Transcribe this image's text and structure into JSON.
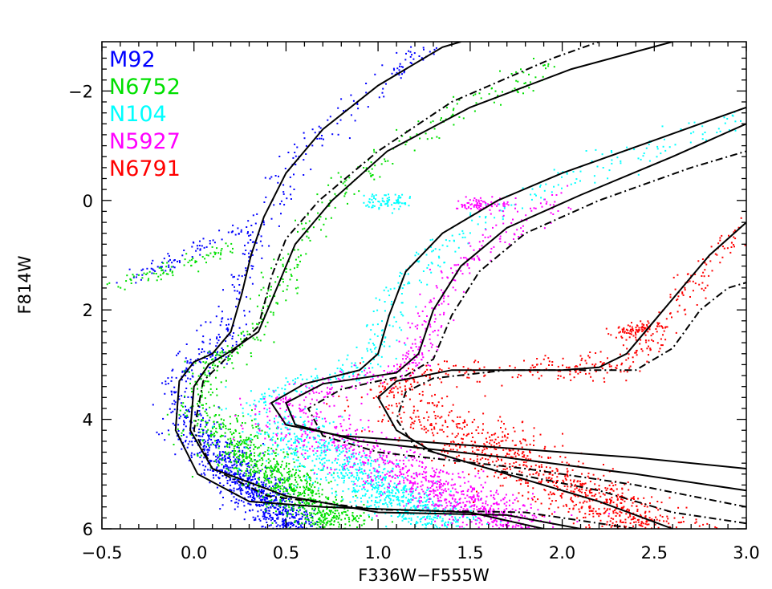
{
  "chart_data": {
    "type": "scatter",
    "title": "",
    "xlabel": "F336W−F555W",
    "ylabel": "F814W",
    "xlim": [
      -0.5,
      3.0
    ],
    "ylim": [
      6.0,
      -2.9
    ],
    "y_inverted": true,
    "xticks": [
      -0.5,
      0.0,
      0.5,
      1.0,
      1.5,
      2.0,
      2.5,
      3.0
    ],
    "xtick_labels": [
      "−0.5",
      "0.0",
      "0.5",
      "1.0",
      "1.5",
      "2.0",
      "2.5",
      "3.0"
    ],
    "yticks": [
      -2,
      0,
      2,
      4,
      6
    ],
    "ytick_labels": [
      "−2",
      "0",
      "2",
      "4",
      "6"
    ],
    "legend_position": "top-left",
    "series": [
      {
        "name": "M92",
        "color": "#0000ff",
        "ms_turnoff": [
          -0.1,
          3.9
        ],
        "ms_bottom": [
          0.55,
          6.0
        ],
        "ridge": [
          [
            -0.1,
            3.9
          ],
          [
            -0.08,
            3.2
          ],
          [
            0.0,
            2.9
          ],
          [
            0.1,
            2.7
          ],
          [
            0.2,
            2.3
          ],
          [
            0.25,
            1.6
          ],
          [
            0.3,
            1.0
          ],
          [
            0.37,
            0.3
          ],
          [
            0.5,
            -0.5
          ],
          [
            0.7,
            -1.3
          ],
          [
            1.0,
            -2.2
          ],
          [
            1.3,
            -2.9
          ]
        ],
        "hb": [
          [
            -0.35,
            1.4
          ],
          [
            -0.2,
            1.2
          ],
          [
            0.0,
            0.9
          ],
          [
            0.15,
            0.6
          ],
          [
            0.3,
            0.5
          ]
        ]
      },
      {
        "name": "N6752",
        "color": "#00e000",
        "ms_turnoff": [
          0.0,
          3.8
        ],
        "ms_bottom": [
          0.8,
          6.0
        ],
        "ridge": [
          [
            0.0,
            3.8
          ],
          [
            0.05,
            3.1
          ],
          [
            0.2,
            2.8
          ],
          [
            0.35,
            2.3
          ],
          [
            0.45,
            1.5
          ],
          [
            0.6,
            0.6
          ],
          [
            0.8,
            -0.2
          ],
          [
            1.1,
            -1.0
          ],
          [
            1.5,
            -1.8
          ],
          [
            2.0,
            -2.5
          ]
        ],
        "hb": [
          [
            -0.4,
            1.5
          ],
          [
            -0.2,
            1.3
          ],
          [
            0.0,
            1.1
          ],
          [
            0.2,
            0.8
          ]
        ]
      },
      {
        "name": "N104",
        "color": "#00ffff",
        "ms_turnoff": [
          0.3,
          3.8
        ],
        "ms_bottom": [
          1.4,
          6.0
        ],
        "ridge": [
          [
            0.3,
            3.8
          ],
          [
            0.55,
            3.3
          ],
          [
            0.9,
            3.1
          ],
          [
            1.0,
            2.6
          ],
          [
            1.1,
            1.7
          ],
          [
            1.3,
            0.9
          ],
          [
            1.6,
            0.2
          ],
          [
            2.0,
            -0.4
          ],
          [
            2.5,
            -1.0
          ],
          [
            3.0,
            -1.5
          ]
        ],
        "hb": [
          [
            0.95,
            0.0
          ],
          [
            1.15,
            0.0
          ]
        ]
      },
      {
        "name": "N5927",
        "color": "#ff00ff",
        "ms_turnoff": [
          0.4,
          3.8
        ],
        "ms_bottom": [
          1.8,
          6.0
        ],
        "ridge": [
          [
            0.4,
            3.8
          ],
          [
            0.7,
            3.4
          ],
          [
            1.1,
            3.1
          ],
          [
            1.2,
            2.8
          ],
          [
            1.3,
            2.0
          ],
          [
            1.45,
            1.2
          ],
          [
            1.7,
            0.5
          ],
          [
            2.0,
            0.0
          ]
        ],
        "hb": [
          [
            1.45,
            0.05
          ],
          [
            1.7,
            0.05
          ]
        ]
      },
      {
        "name": "N6791",
        "color": "#ff0000",
        "ms_turnoff": [
          1.0,
          3.5
        ],
        "ms_bottom": [
          2.5,
          6.0
        ],
        "ridge": [
          [
            1.0,
            3.5
          ],
          [
            1.3,
            3.1
          ],
          [
            2.0,
            3.05
          ],
          [
            2.3,
            3.0
          ],
          [
            2.5,
            2.5
          ],
          [
            2.7,
            1.5
          ],
          [
            3.0,
            0.5
          ]
        ],
        "hb": [
          [
            2.3,
            2.4
          ],
          [
            2.5,
            2.3
          ]
        ]
      }
    ],
    "isochrones": [
      {
        "style": "solid",
        "points": [
          [
            1.9,
            6.0
          ],
          [
            1.5,
            5.7
          ],
          [
            0.7,
            5.6
          ],
          [
            0.3,
            5.5
          ],
          [
            0.02,
            5.0
          ],
          [
            -0.1,
            4.2
          ],
          [
            -0.08,
            3.3
          ],
          [
            0.0,
            2.95
          ],
          [
            0.1,
            2.8
          ],
          [
            0.2,
            2.4
          ],
          [
            0.26,
            1.7
          ],
          [
            0.31,
            1.0
          ],
          [
            0.38,
            0.3
          ],
          [
            0.5,
            -0.5
          ],
          [
            0.7,
            -1.3
          ],
          [
            1.0,
            -2.1
          ],
          [
            1.35,
            -2.8
          ],
          [
            1.45,
            -2.9
          ]
        ]
      },
      {
        "style": "solid",
        "points": [
          [
            2.1,
            6.0
          ],
          [
            1.7,
            5.75
          ],
          [
            1.0,
            5.7
          ],
          [
            0.5,
            5.4
          ],
          [
            0.1,
            4.9
          ],
          [
            -0.02,
            4.2
          ],
          [
            0.0,
            3.4
          ],
          [
            0.08,
            3.0
          ],
          [
            0.2,
            2.75
          ],
          [
            0.35,
            2.4
          ],
          [
            0.45,
            1.6
          ],
          [
            0.55,
            0.8
          ],
          [
            0.75,
            0.0
          ],
          [
            1.05,
            -0.9
          ],
          [
            1.5,
            -1.7
          ],
          [
            2.05,
            -2.4
          ],
          [
            2.6,
            -2.9
          ]
        ]
      },
      {
        "style": "solid",
        "points": [
          [
            3.0,
            4.9
          ],
          [
            2.4,
            4.7
          ],
          [
            1.6,
            4.5
          ],
          [
            0.8,
            4.3
          ],
          [
            0.5,
            4.1
          ],
          [
            0.42,
            3.7
          ],
          [
            0.6,
            3.35
          ],
          [
            0.9,
            3.1
          ],
          [
            1.0,
            2.8
          ],
          [
            1.06,
            2.1
          ],
          [
            1.15,
            1.3
          ],
          [
            1.35,
            0.6
          ],
          [
            1.65,
            0.0
          ],
          [
            2.0,
            -0.5
          ],
          [
            2.5,
            -1.1
          ],
          [
            3.0,
            -1.7
          ]
        ]
      },
      {
        "style": "solid",
        "points": [
          [
            3.0,
            5.3
          ],
          [
            2.4,
            5.0
          ],
          [
            1.7,
            4.7
          ],
          [
            0.9,
            4.4
          ],
          [
            0.55,
            4.1
          ],
          [
            0.5,
            3.7
          ],
          [
            0.7,
            3.35
          ],
          [
            1.1,
            3.15
          ],
          [
            1.22,
            2.8
          ],
          [
            1.3,
            2.0
          ],
          [
            1.45,
            1.2
          ],
          [
            1.7,
            0.5
          ],
          [
            2.1,
            -0.1
          ],
          [
            2.6,
            -0.8
          ],
          [
            3.0,
            -1.4
          ]
        ]
      },
      {
        "style": "solid",
        "points": [
          [
            2.6,
            6.0
          ],
          [
            2.2,
            5.5
          ],
          [
            1.7,
            5.0
          ],
          [
            1.3,
            4.6
          ],
          [
            1.1,
            4.2
          ],
          [
            1.0,
            3.6
          ],
          [
            1.1,
            3.3
          ],
          [
            1.4,
            3.1
          ],
          [
            2.0,
            3.1
          ],
          [
            2.2,
            3.05
          ],
          [
            2.35,
            2.8
          ],
          [
            2.5,
            2.2
          ],
          [
            2.65,
            1.6
          ],
          [
            2.8,
            1.0
          ],
          [
            3.0,
            0.4
          ]
        ]
      },
      {
        "style": "dashdot",
        "points": [
          [
            3.0,
            5.6
          ],
          [
            2.4,
            5.2
          ],
          [
            1.8,
            4.9
          ],
          [
            1.0,
            4.6
          ],
          [
            0.7,
            4.3
          ],
          [
            0.62,
            3.8
          ],
          [
            0.8,
            3.45
          ],
          [
            1.0,
            3.3
          ],
          [
            1.15,
            3.2
          ],
          [
            1.3,
            2.9
          ],
          [
            1.4,
            2.1
          ],
          [
            1.55,
            1.3
          ],
          [
            1.8,
            0.6
          ],
          [
            2.2,
            0.0
          ],
          [
            2.7,
            -0.6
          ],
          [
            3.0,
            -0.9
          ]
        ]
      },
      {
        "style": "dashdot",
        "points": [
          [
            2.4,
            6.0
          ],
          [
            1.8,
            5.7
          ],
          [
            1.0,
            5.65
          ],
          [
            0.4,
            5.4
          ],
          [
            0.1,
            4.9
          ],
          [
            0.0,
            4.2
          ],
          [
            0.05,
            3.3
          ],
          [
            0.2,
            2.8
          ],
          [
            0.35,
            2.3
          ],
          [
            0.42,
            1.4
          ],
          [
            0.5,
            0.7
          ],
          [
            0.68,
            0.0
          ],
          [
            1.0,
            -0.9
          ],
          [
            1.4,
            -1.8
          ],
          [
            1.95,
            -2.6
          ],
          [
            2.2,
            -2.9
          ]
        ]
      },
      {
        "style": "dashdot",
        "points": [
          [
            3.0,
            5.9
          ],
          [
            2.6,
            5.7
          ],
          [
            2.2,
            5.3
          ],
          [
            1.6,
            4.9
          ],
          [
            1.2,
            4.5
          ],
          [
            1.1,
            4.0
          ],
          [
            1.15,
            3.5
          ],
          [
            1.3,
            3.25
          ],
          [
            1.7,
            3.1
          ],
          [
            2.0,
            3.1
          ],
          [
            2.4,
            3.1
          ],
          [
            2.6,
            2.7
          ],
          [
            2.75,
            2.0
          ],
          [
            2.9,
            1.6
          ],
          [
            3.0,
            1.5
          ]
        ]
      }
    ]
  },
  "figure": {
    "background": "#ffffff",
    "axis_color": "#000000"
  }
}
